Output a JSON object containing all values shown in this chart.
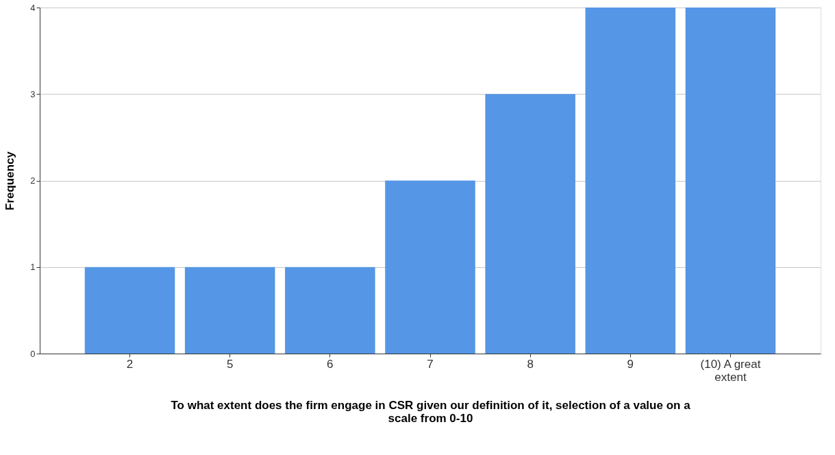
{
  "chart_data": {
    "type": "bar",
    "xlabel": "To what extent does the firm engage in CSR given our definition of it, selection of a value on a scale from 0-10",
    "ylabel": "Frequency",
    "categories": [
      "2",
      "5",
      "6",
      "7",
      "8",
      "9",
      "(10) A great extent"
    ],
    "values": [
      1,
      1,
      1,
      2,
      3,
      4,
      4
    ],
    "color": "#5596e6",
    "ylim": [
      0,
      4
    ],
    "yticks": [
      0,
      1,
      2,
      3,
      4
    ],
    "grid": "y"
  }
}
